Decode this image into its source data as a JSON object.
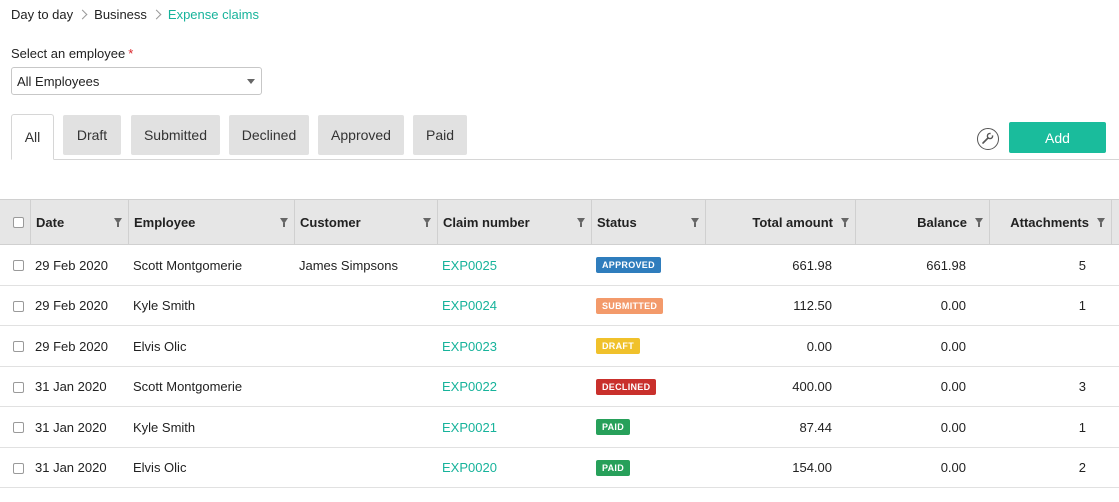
{
  "breadcrumb": [
    "Day to day",
    "Business",
    "Expense claims"
  ],
  "employee_select": {
    "label": "Select an employee",
    "required_mark": "*",
    "value": "All Employees"
  },
  "tabs": [
    {
      "label": "All",
      "active": true
    },
    {
      "label": "Draft",
      "active": false
    },
    {
      "label": "Submitted",
      "active": false
    },
    {
      "label": "Declined",
      "active": false
    },
    {
      "label": "Approved",
      "active": false
    },
    {
      "label": "Paid",
      "active": false
    }
  ],
  "toolbar": {
    "settings_icon": "wrench-icon",
    "add_label": "Add",
    "add_color": "#1abc9c"
  },
  "table": {
    "columns": [
      "Date",
      "Employee",
      "Customer",
      "Claim number",
      "Status",
      "Total amount",
      "Balance",
      "Attachments"
    ],
    "rows": [
      {
        "date": "29 Feb 2020",
        "employee": "Scott Montgomerie",
        "customer": "James Simpsons",
        "claim": "EXP0025",
        "status": "APPROVED",
        "total": "661.98",
        "balance": "661.98",
        "attachments": "5"
      },
      {
        "date": "29 Feb 2020",
        "employee": "Kyle Smith",
        "customer": "",
        "claim": "EXP0024",
        "status": "SUBMITTED",
        "total": "112.50",
        "balance": "0.00",
        "attachments": "1"
      },
      {
        "date": "29 Feb 2020",
        "employee": "Elvis Olic",
        "customer": "",
        "claim": "EXP0023",
        "status": "DRAFT",
        "total": "0.00",
        "balance": "0.00",
        "attachments": ""
      },
      {
        "date": "31 Jan 2020",
        "employee": "Scott Montgomerie",
        "customer": "",
        "claim": "EXP0022",
        "status": "DECLINED",
        "total": "400.00",
        "balance": "0.00",
        "attachments": "3"
      },
      {
        "date": "31 Jan 2020",
        "employee": "Kyle Smith",
        "customer": "",
        "claim": "EXP0021",
        "status": "PAID",
        "total": "87.44",
        "balance": "0.00",
        "attachments": "1"
      },
      {
        "date": "31 Jan 2020",
        "employee": "Elvis Olic",
        "customer": "",
        "claim": "EXP0020",
        "status": "PAID",
        "total": "154.00",
        "balance": "0.00",
        "attachments": "2"
      }
    ]
  },
  "status_colors": {
    "APPROVED": "#2f7dbd",
    "SUBMITTED": "#f39a6b",
    "DRAFT": "#f0c12b",
    "DECLINED": "#c9302c",
    "PAID": "#27a05a"
  },
  "accent_color": "#17b39b"
}
